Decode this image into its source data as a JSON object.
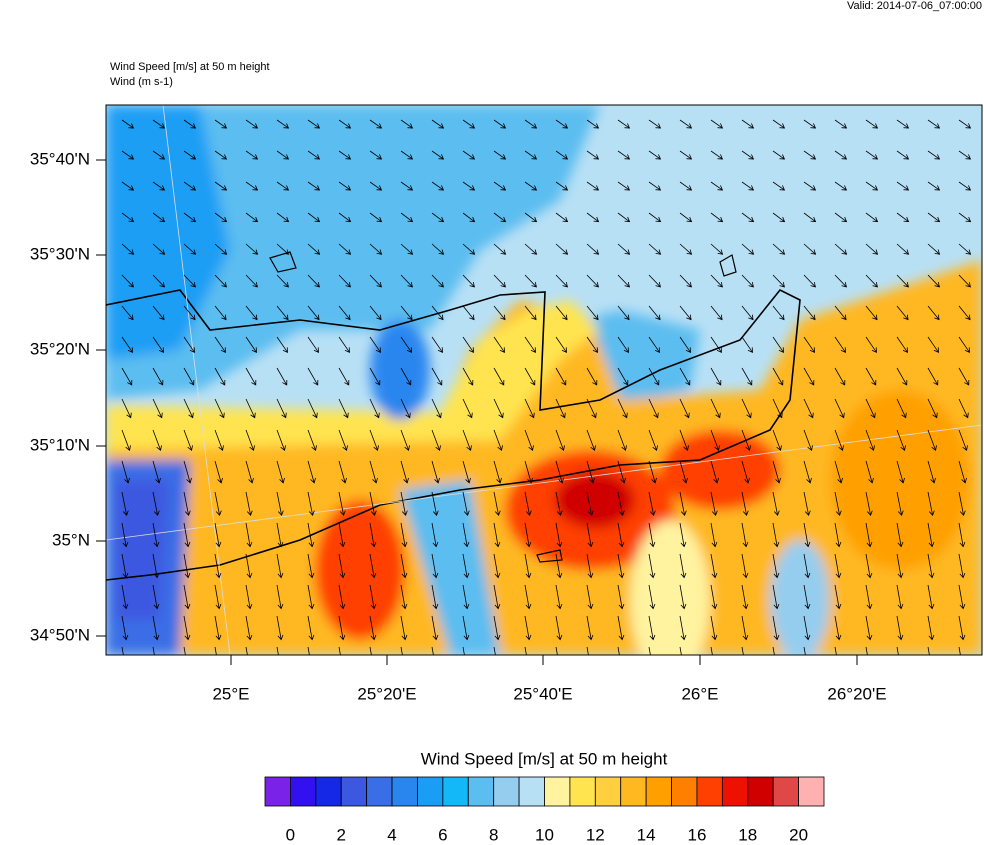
{
  "header": {
    "valid": "Valid: 2014-07-06_07:00:00",
    "title": "Wind Speed [m/s] at 50 m height",
    "subtitle": "Wind   (m s-1)"
  },
  "map": {
    "lat_labels": [
      "35°40'N",
      "35°30'N",
      "35°20'N",
      "35°10'N",
      "35°N",
      "34°50'N"
    ],
    "lon_labels": [
      "25°E",
      "25°20'E",
      "25°40'E",
      "26°E",
      "26°20'E"
    ]
  },
  "colorbar": {
    "title": "Wind Speed [m/s] at 50 m height",
    "colors": [
      "#7b22e8",
      "#3310f0",
      "#1428e6",
      "#3c58e0",
      "#3a6ee6",
      "#2a86ef",
      "#1a9ef5",
      "#12b8f8",
      "#5cbdf0",
      "#95cdef",
      "#b8e0f5",
      "#fff3a0",
      "#ffe450",
      "#ffcf40",
      "#ffb820",
      "#ffa000",
      "#ff8000",
      "#ff4000",
      "#ee1000",
      "#d00000",
      "#e04848",
      "#ffb0b0"
    ],
    "labels": [
      0,
      2,
      4,
      6,
      8,
      10,
      12,
      14,
      16,
      18,
      20
    ]
  }
}
